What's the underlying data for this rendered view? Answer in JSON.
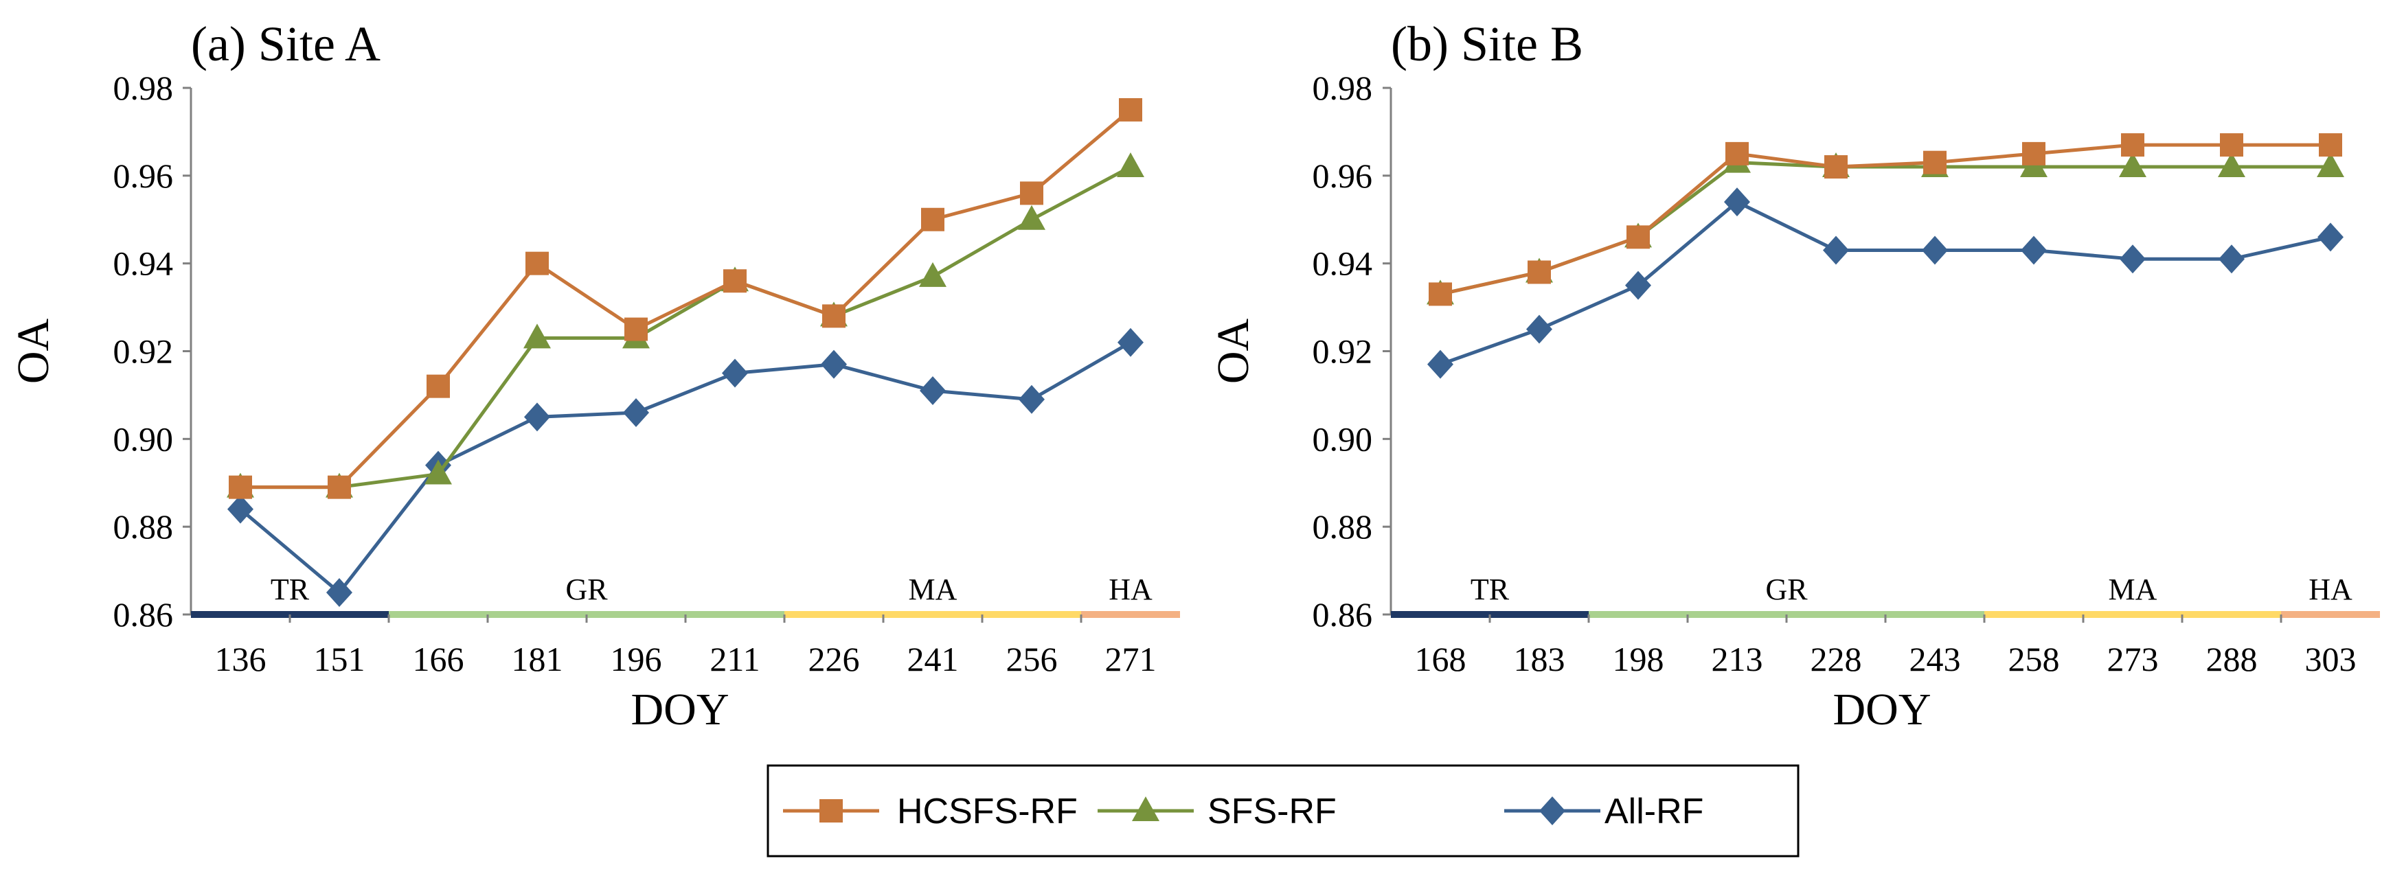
{
  "chart_data": [
    {
      "type": "line",
      "title": "(a) Site A",
      "xlabel": "DOY",
      "ylabel": "OA",
      "ylim": [
        0.86,
        0.98
      ],
      "yticks": [
        "0.86",
        "0.88",
        "0.90",
        "0.92",
        "0.94",
        "0.96",
        "0.98"
      ],
      "categories": [
        "136",
        "151",
        "166",
        "181",
        "196",
        "211",
        "226",
        "241",
        "256",
        "271"
      ],
      "series": [
        {
          "name": "HCSFS-RF",
          "values": [
            0.889,
            0.889,
            0.912,
            0.94,
            0.925,
            0.936,
            0.928,
            0.95,
            0.956,
            0.975
          ]
        },
        {
          "name": "SFS-RF",
          "values": [
            0.889,
            0.889,
            0.892,
            0.923,
            0.923,
            0.936,
            0.928,
            0.937,
            0.95,
            0.962
          ]
        },
        {
          "name": "All-RF",
          "values": [
            0.884,
            0.865,
            0.894,
            0.905,
            0.906,
            0.915,
            0.917,
            0.911,
            0.909,
            0.922
          ]
        }
      ],
      "stages": [
        {
          "label": "TR",
          "from": 0,
          "to": 2
        },
        {
          "label": "GR",
          "from": 2,
          "to": 6
        },
        {
          "label": "MA",
          "from": 6,
          "to": 9
        },
        {
          "label": "HA",
          "from": 9,
          "to": 10
        }
      ]
    },
    {
      "type": "line",
      "title": "(b) Site B",
      "xlabel": "DOY",
      "ylabel": "OA",
      "ylim": [
        0.86,
        0.98
      ],
      "yticks": [
        "0.86",
        "0.88",
        "0.90",
        "0.92",
        "0.94",
        "0.96",
        "0.98"
      ],
      "categories": [
        "168",
        "183",
        "198",
        "213",
        "228",
        "243",
        "258",
        "273",
        "288",
        "303"
      ],
      "series": [
        {
          "name": "HCSFS-RF",
          "values": [
            0.933,
            0.938,
            0.946,
            0.965,
            0.962,
            0.963,
            0.965,
            0.967,
            0.967,
            0.967
          ]
        },
        {
          "name": "SFS-RF",
          "values": [
            0.933,
            0.938,
            0.946,
            0.963,
            0.962,
            0.962,
            0.962,
            0.962,
            0.962,
            0.962
          ]
        },
        {
          "name": "All-RF",
          "values": [
            0.917,
            0.925,
            0.935,
            0.954,
            0.943,
            0.943,
            0.943,
            0.941,
            0.941,
            0.946
          ]
        }
      ],
      "stages": [
        {
          "label": "TR",
          "from": 0,
          "to": 2
        },
        {
          "label": "GR",
          "from": 2,
          "to": 6
        },
        {
          "label": "MA",
          "from": 6,
          "to": 9
        },
        {
          "label": "HA",
          "from": 9,
          "to": 10
        }
      ]
    }
  ],
  "legend": {
    "placement": "bottom-center",
    "items": [
      {
        "label": "HCSFS-RF",
        "marker": "square"
      },
      {
        "label": "SFS-RF",
        "marker": "triangle"
      },
      {
        "label": "All-RF",
        "marker": "diamond"
      }
    ]
  },
  "colors": {
    "HCSFS-RF": "#C8763A",
    "SFS-RF": "#77933C",
    "All-RF": "#3A6291",
    "axis": "#808080",
    "stage_TR": "#1F3864",
    "stage_GR": "#A9D18E",
    "stage_MA": "#FFD966",
    "stage_HA": "#F4B183"
  }
}
